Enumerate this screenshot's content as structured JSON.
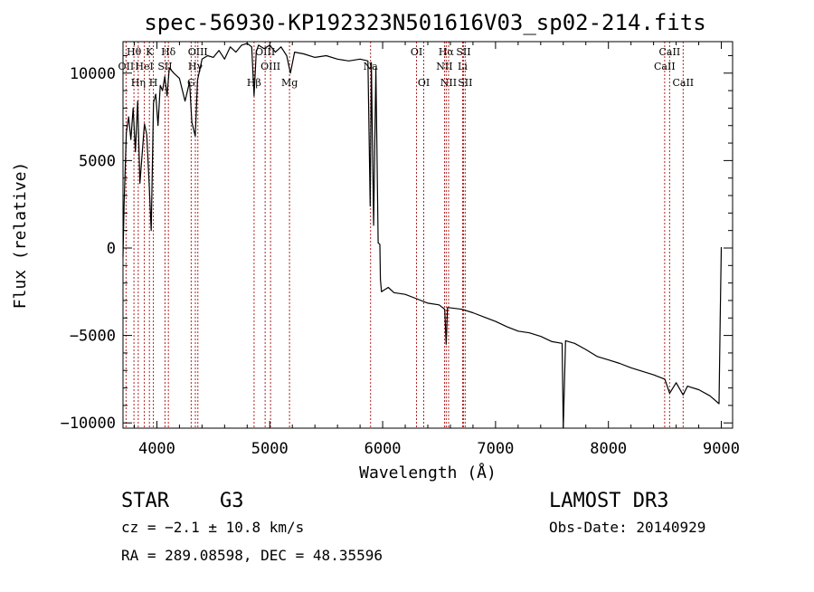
{
  "chart_data": {
    "type": "line",
    "title": "spec-56930-KP192323N501616V03_sp02-214.fits",
    "xlabel": "Wavelength (Å)",
    "ylabel": "Flux (relative)",
    "xlim": [
      3700,
      9100
    ],
    "ylim": [
      -10300,
      11800
    ],
    "x_ticks": [
      4000,
      5000,
      6000,
      7000,
      8000,
      9000
    ],
    "x_tick_labels": [
      "4000",
      "5000",
      "6000",
      "7000",
      "8000",
      "9000"
    ],
    "y_ticks": [
      -10000,
      -5000,
      0,
      5000,
      10000
    ],
    "y_tick_labels": [
      "−10000",
      "−5000",
      "0",
      "5000",
      "10000"
    ],
    "spectrum_points": [
      [
        3700,
        -500
      ],
      [
        3710,
        2500
      ],
      [
        3730,
        6600
      ],
      [
        3750,
        7500
      ],
      [
        3770,
        6200
      ],
      [
        3790,
        8000
      ],
      [
        3810,
        5500
      ],
      [
        3830,
        8400
      ],
      [
        3850,
        3700
      ],
      [
        3870,
        5400
      ],
      [
        3890,
        7100
      ],
      [
        3910,
        6500
      ],
      [
        3930,
        3900
      ],
      [
        3950,
        1000
      ],
      [
        3970,
        8300
      ],
      [
        3990,
        8800
      ],
      [
        4010,
        7000
      ],
      [
        4030,
        9300
      ],
      [
        4050,
        9000
      ],
      [
        4070,
        9800
      ],
      [
        4090,
        8700
      ],
      [
        4110,
        10300
      ],
      [
        4150,
        10000
      ],
      [
        4200,
        9700
      ],
      [
        4250,
        8400
      ],
      [
        4290,
        9500
      ],
      [
        4310,
        7200
      ],
      [
        4340,
        6400
      ],
      [
        4360,
        9600
      ],
      [
        4400,
        10800
      ],
      [
        4450,
        11000
      ],
      [
        4500,
        10900
      ],
      [
        4550,
        11300
      ],
      [
        4600,
        10800
      ],
      [
        4650,
        11500
      ],
      [
        4700,
        11200
      ],
      [
        4750,
        11600
      ],
      [
        4800,
        11700
      ],
      [
        4840,
        11500
      ],
      [
        4861,
        8700
      ],
      [
        4880,
        11200
      ],
      [
        4900,
        11600
      ],
      [
        4950,
        11400
      ],
      [
        5000,
        11600
      ],
      [
        5050,
        11200
      ],
      [
        5100,
        11500
      ],
      [
        5150,
        11000
      ],
      [
        5183,
        10000
      ],
      [
        5220,
        11200
      ],
      [
        5300,
        11100
      ],
      [
        5400,
        10900
      ],
      [
        5500,
        11000
      ],
      [
        5600,
        10800
      ],
      [
        5700,
        10700
      ],
      [
        5800,
        10800
      ],
      [
        5870,
        10700
      ],
      [
        5890,
        2400
      ],
      [
        5900,
        10600
      ],
      [
        5920,
        1300
      ],
      [
        5940,
        10300
      ],
      [
        5960,
        300
      ],
      [
        5975,
        200
      ],
      [
        5980,
        -1800
      ],
      [
        5990,
        -2500
      ],
      [
        6050,
        -2250
      ],
      [
        6100,
        -2550
      ],
      [
        6200,
        -2650
      ],
      [
        6300,
        -2900
      ],
      [
        6400,
        -3150
      ],
      [
        6500,
        -3250
      ],
      [
        6550,
        -3500
      ],
      [
        6563,
        -5500
      ],
      [
        6575,
        -3400
      ],
      [
        6700,
        -3500
      ],
      [
        6800,
        -3700
      ],
      [
        6900,
        -3950
      ],
      [
        7000,
        -4200
      ],
      [
        7100,
        -4500
      ],
      [
        7200,
        -4750
      ],
      [
        7300,
        -4850
      ],
      [
        7400,
        -5050
      ],
      [
        7500,
        -5350
      ],
      [
        7590,
        -5450
      ],
      [
        7600,
        -10400
      ],
      [
        7620,
        -5300
      ],
      [
        7700,
        -5450
      ],
      [
        7800,
        -5800
      ],
      [
        7900,
        -6200
      ],
      [
        8000,
        -6400
      ],
      [
        8100,
        -6600
      ],
      [
        8200,
        -6850
      ],
      [
        8300,
        -7050
      ],
      [
        8400,
        -7250
      ],
      [
        8500,
        -7500
      ],
      [
        8542,
        -8300
      ],
      [
        8600,
        -7700
      ],
      [
        8662,
        -8400
      ],
      [
        8700,
        -7900
      ],
      [
        8800,
        -8100
      ],
      [
        8900,
        -8450
      ],
      [
        8980,
        -8900
      ],
      [
        8990,
        -4000
      ],
      [
        9000,
        50
      ]
    ],
    "emission_lines": [
      {
        "label": "Hθ",
        "wavelength": 3797,
        "row": 1
      },
      {
        "label": "OII",
        "wavelength": 3727,
        "row": 2
      },
      {
        "label": "Hη",
        "wavelength": 3835,
        "row": 3
      },
      {
        "label": "K",
        "wavelength": 3934,
        "row": 1
      },
      {
        "label": "HeI",
        "wavelength": 3889,
        "row": 2
      },
      {
        "label": "H",
        "wavelength": 3969,
        "row": 3
      },
      {
        "label": "Hδ",
        "wavelength": 4102,
        "row": 1
      },
      {
        "label": "SII",
        "wavelength": 4072,
        "row": 2
      },
      {
        "label": "OIII",
        "wavelength": 4363,
        "row": 1
      },
      {
        "label": "Hγ",
        "wavelength": 4341,
        "row": 2
      },
      {
        "label": "G",
        "wavelength": 4304,
        "row": 3
      },
      {
        "label": "OIII",
        "wavelength": 4959,
        "row": 1
      },
      {
        "label": "OIII",
        "wavelength": 5007,
        "row": 2
      },
      {
        "label": "Hβ",
        "wavelength": 4861,
        "row": 3
      },
      {
        "label": "Mg",
        "wavelength": 5175,
        "row": 3
      },
      {
        "label": "Na",
        "wavelength": 5893,
        "row": 2
      },
      {
        "label": "OI",
        "wavelength": 6300,
        "row": 1
      },
      {
        "label": "OI",
        "wavelength": 6364,
        "row": 3
      },
      {
        "label": "Hα",
        "wavelength": 6563,
        "row": 1
      },
      {
        "label": "SII",
        "wavelength": 6716,
        "row": 1
      },
      {
        "label": "NII",
        "wavelength": 6548,
        "row": 2
      },
      {
        "label": "Li",
        "wavelength": 6708,
        "row": 2
      },
      {
        "label": "NII",
        "wavelength": 6584,
        "row": 3
      },
      {
        "label": "SII",
        "wavelength": 6731,
        "row": 3
      },
      {
        "label": "CaII",
        "wavelength": 8542,
        "row": 1
      },
      {
        "label": "CaII",
        "wavelength": 8498,
        "row": 2
      },
      {
        "label": "CaII",
        "wavelength": 8662,
        "row": 3
      }
    ]
  },
  "info": {
    "object_class": "STAR",
    "subclass": "G3",
    "survey": "LAMOST DR3",
    "redshift_text": "cz = −2.1 ± 10.8 km/s",
    "obs_date": "Obs-Date: 20140929",
    "coords": "RA = 289.08598, DEC =  48.35596"
  },
  "colors": {
    "line_marker": "#b22222",
    "spectrum": "#000000",
    "axes": "#000000"
  }
}
